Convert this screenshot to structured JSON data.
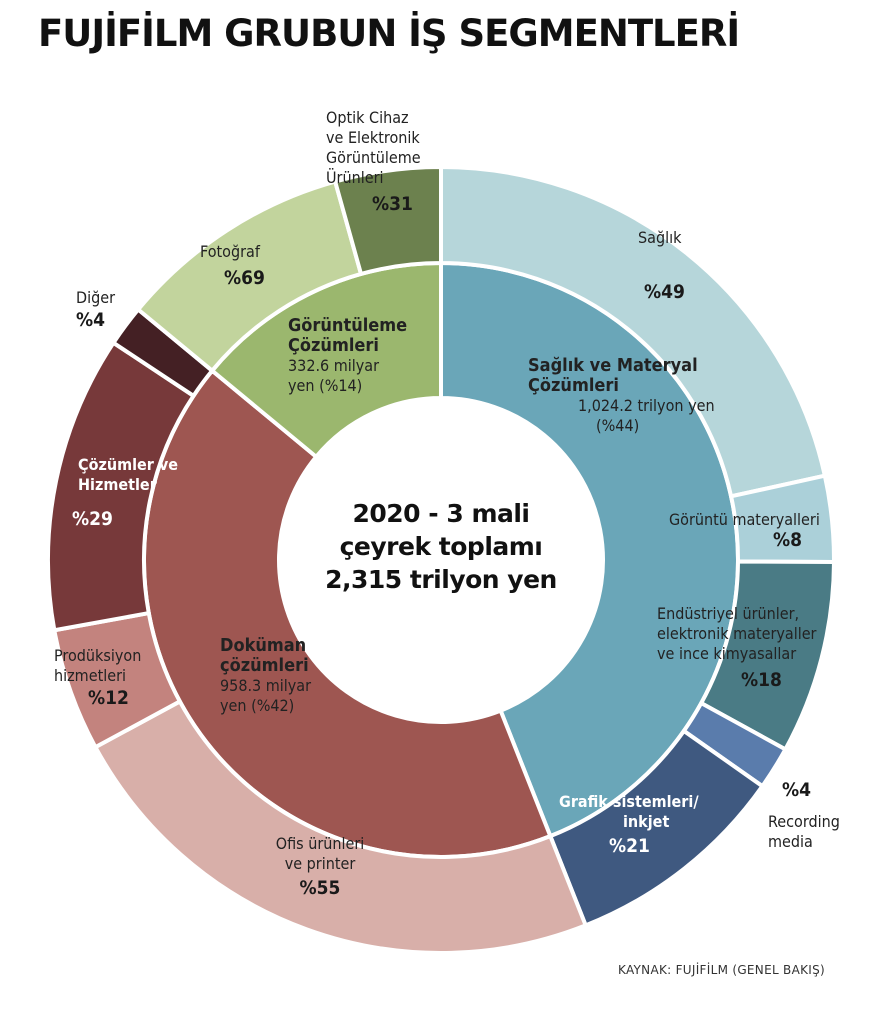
{
  "title": "FUJİFİLM GRUBUN İŞ SEGMENTLERİ",
  "center": {
    "line1": "2020 - 3 mali",
    "line2": "çeyrek toplamı",
    "line3": "2,315 trilyon yen"
  },
  "source": "KAYNAK: FUJİFİLM (GENEL BAKIŞ)",
  "chart_data": {
    "type": "pie",
    "subtype": "nested-donut",
    "total_label": "2,315 trilyon yen",
    "inner": [
      {
        "name_lines": [
          "Sağlık ve Materyal",
          "Çözümleri"
        ],
        "detail_lines": [
          "1,024.2 trilyon yen",
          "(%44)"
        ],
        "value": 44,
        "color": "#6aa6b8"
      },
      {
        "name_lines": [
          "Doküman",
          "çözümleri"
        ],
        "detail_lines": [
          "958.3 milyar",
          "yen (%42)"
        ],
        "value": 42,
        "color": "#9e5651"
      },
      {
        "name_lines": [
          "Görüntüleme",
          "Çözümleri"
        ],
        "detail_lines": [
          "332.6 milyar",
          "yen (%14)"
        ],
        "value": 14,
        "color": "#9bb76e"
      }
    ],
    "outer": [
      {
        "parent": 0,
        "label_lines": [
          "Sağlık"
        ],
        "pct_label": "%49",
        "value": 49,
        "color": "#b6d6da"
      },
      {
        "parent": 0,
        "label_lines": [
          "Görüntü materyalleri"
        ],
        "pct_label": "%8",
        "value": 8,
        "color": "#abd0d9"
      },
      {
        "parent": 0,
        "label_lines": [
          "Endüstriyel ürünler,",
          "elektronik materyaller",
          "ve ince kimyasallar"
        ],
        "pct_label": "%18",
        "value": 18,
        "color": "#4a7b85"
      },
      {
        "parent": 0,
        "label_lines": [
          "Recording",
          "media"
        ],
        "pct_label": "%4",
        "value": 4,
        "color": "#5a7cac"
      },
      {
        "parent": 0,
        "label_lines": [
          "Grafik sistemleri/",
          "inkjet"
        ],
        "pct_label": "%21",
        "value": 21,
        "color": "#3f5980"
      },
      {
        "parent": 1,
        "label_lines": [
          "Ofis ürünleri",
          "ve printer"
        ],
        "pct_label": "%55",
        "value": 55,
        "color": "#d8afa9"
      },
      {
        "parent": 1,
        "label_lines": [
          "Prodüksiyon",
          "hizmetleri"
        ],
        "pct_label": "%12",
        "value": 12,
        "color": "#c3837e"
      },
      {
        "parent": 1,
        "label_lines": [
          "Çözümler ve",
          "Hizmetler"
        ],
        "pct_label": "%29",
        "value": 29,
        "color": "#77393a"
      },
      {
        "parent": 1,
        "label_lines": [
          "Diğer"
        ],
        "pct_label": "%4",
        "value": 4,
        "color": "#442024"
      },
      {
        "parent": 2,
        "label_lines": [
          "Fotoğraf"
        ],
        "pct_label": "%69",
        "value": 69,
        "color": "#c2d49d"
      },
      {
        "parent": 2,
        "label_lines": [
          "Optik Cihaz",
          "ve Elektronik",
          "Görüntüleme",
          "Ürünleri"
        ],
        "pct_label": "%31",
        "value": 31,
        "color": "#6c814e"
      }
    ]
  }
}
